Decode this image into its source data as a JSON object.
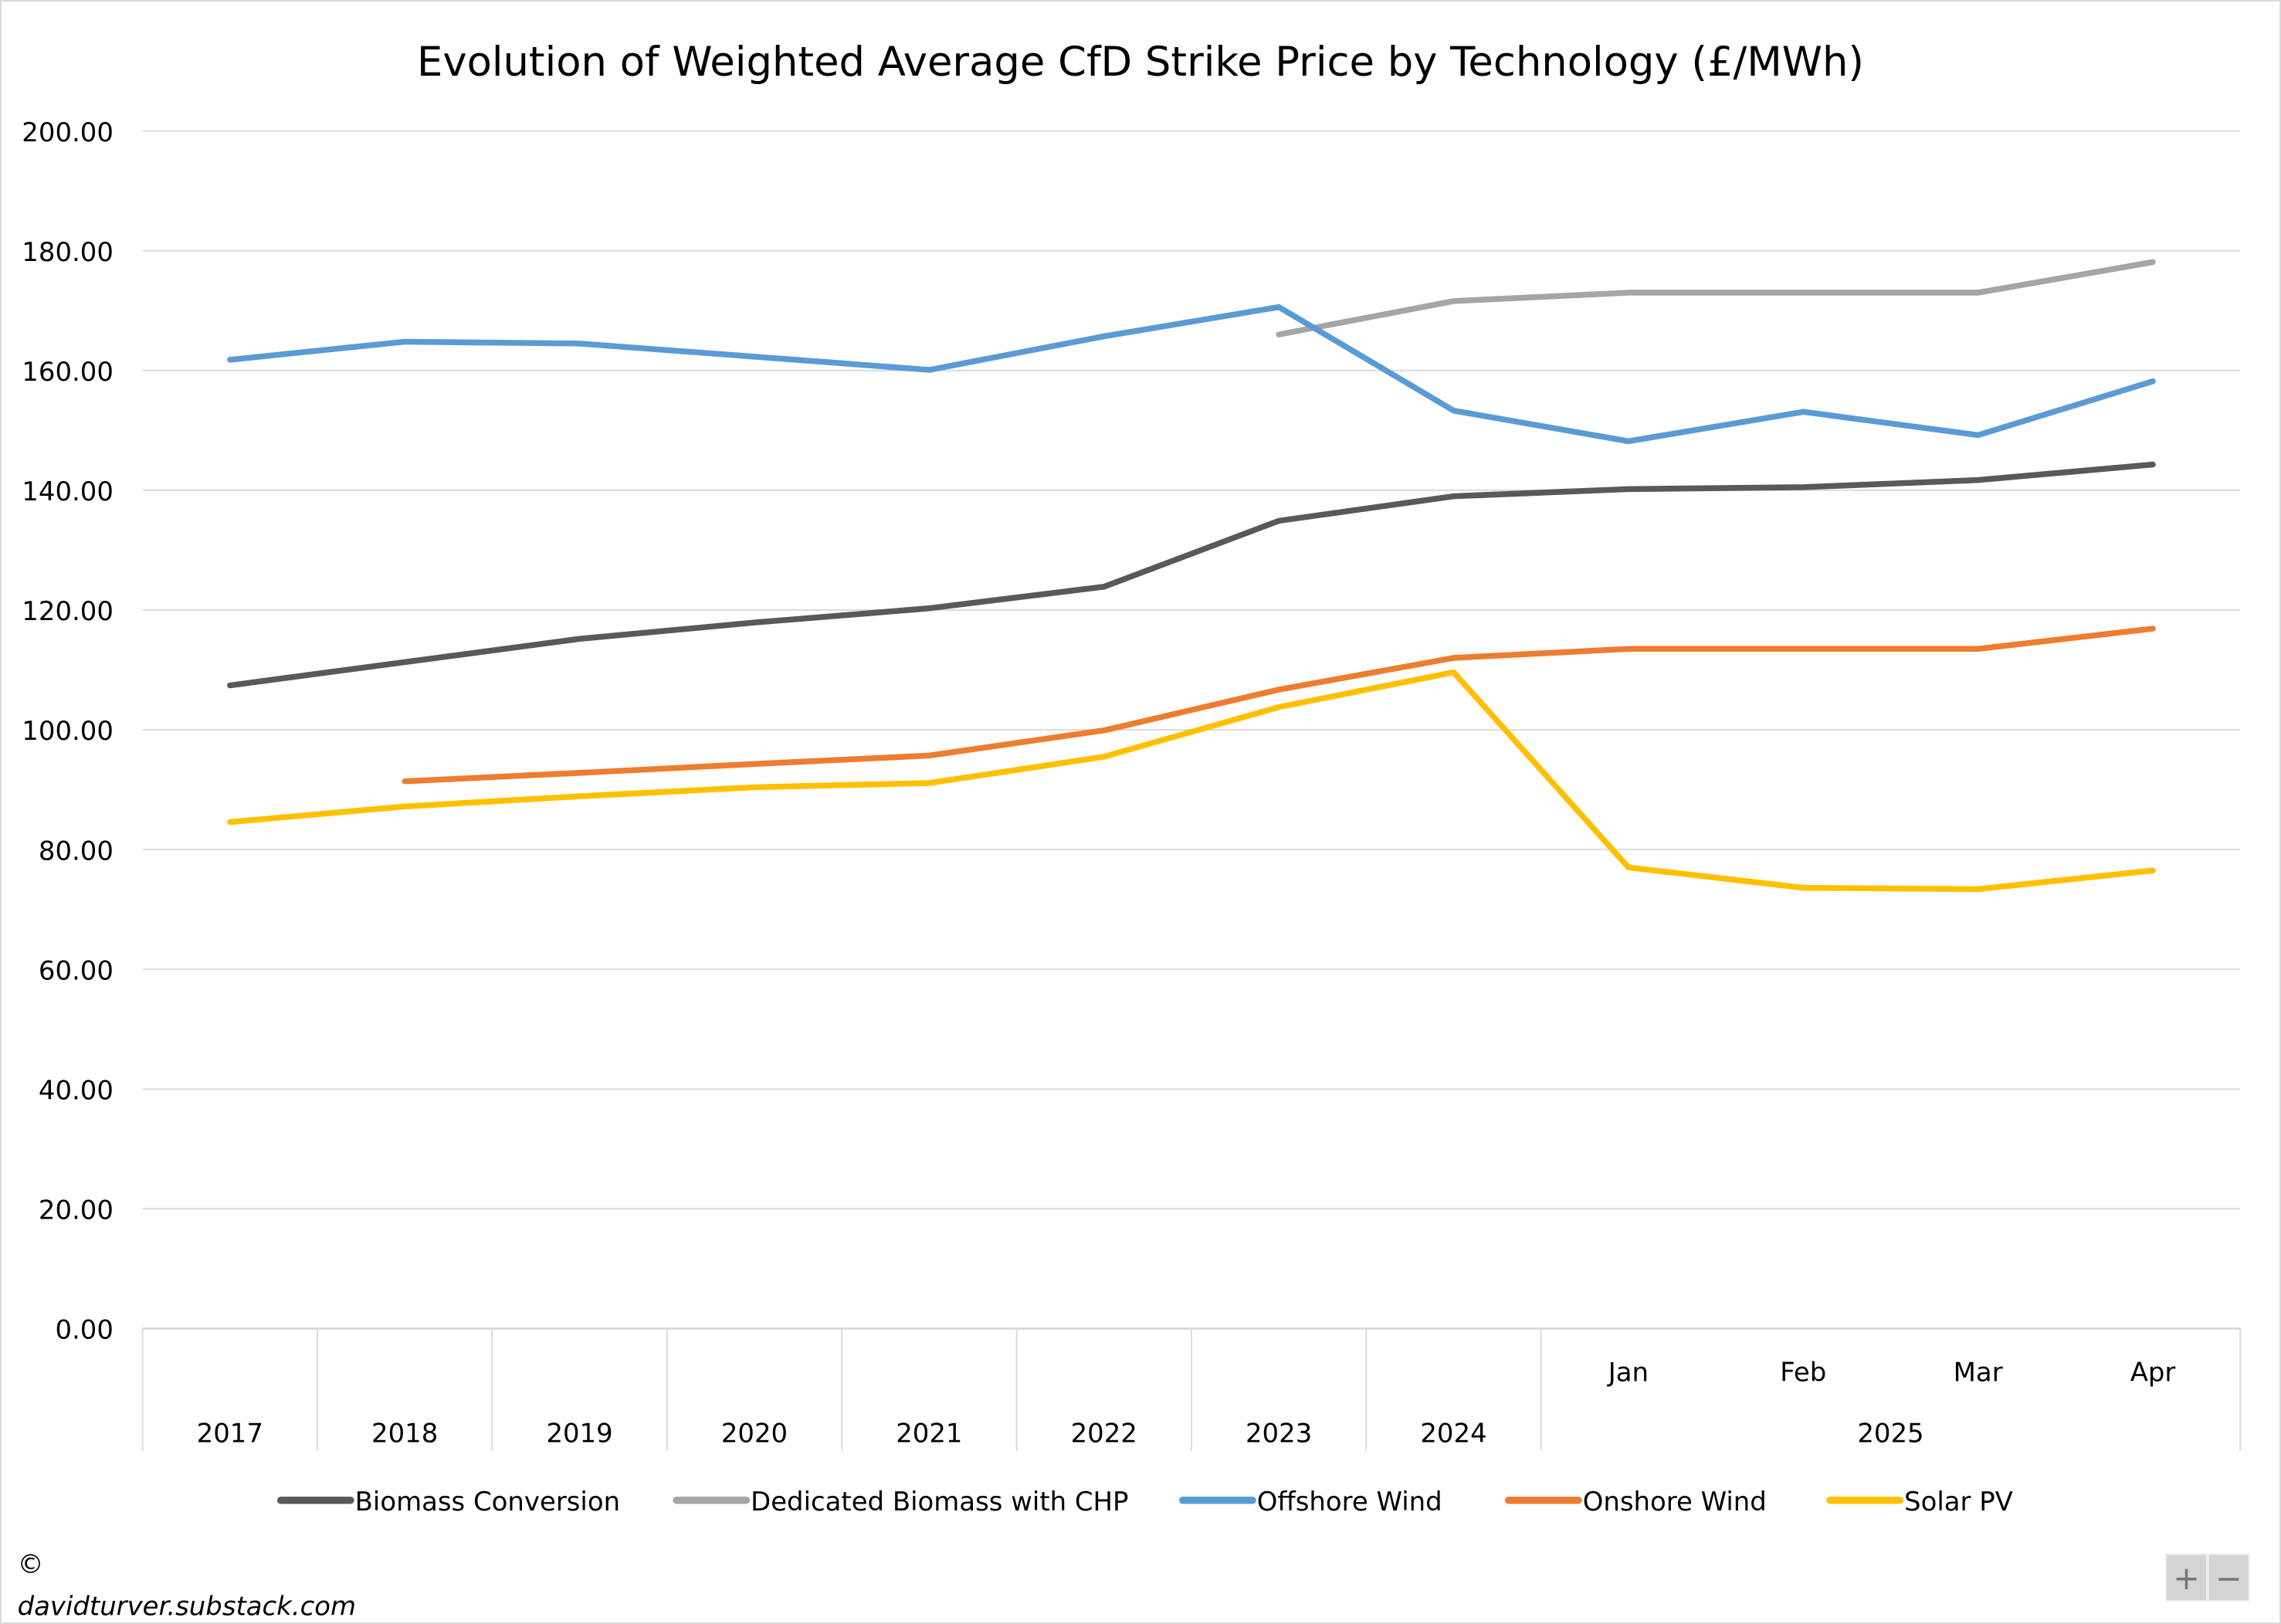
{
  "chart_data": {
    "type": "line",
    "title": "Evolution of Weighted Average CfD Strike Price by Technology (£/MWh)",
    "xlabel": "",
    "ylabel": "",
    "ylim": [
      0,
      200
    ],
    "yticks": [
      "0.00",
      "20.00",
      "40.00",
      "60.00",
      "80.00",
      "100.00",
      "120.00",
      "140.00",
      "160.00",
      "180.00",
      "200.00"
    ],
    "grid": true,
    "legend_position": "bottom",
    "categories": [
      "2017",
      "2018",
      "2019",
      "2020",
      "2021",
      "2022",
      "2023",
      "2024",
      "Jan",
      "Feb",
      "Mar",
      "Apr"
    ],
    "category_groups": [
      {
        "label": "2017",
        "span": 1
      },
      {
        "label": "2018",
        "span": 1
      },
      {
        "label": "2019",
        "span": 1
      },
      {
        "label": "2020",
        "span": 1
      },
      {
        "label": "2021",
        "span": 1
      },
      {
        "label": "2022",
        "span": 1
      },
      {
        "label": "2023",
        "span": 1
      },
      {
        "label": "2024",
        "span": 1
      },
      {
        "label": "2025",
        "span": 4,
        "sub": [
          "Jan",
          "Feb",
          "Mar",
          "Apr"
        ]
      }
    ],
    "series": [
      {
        "name": "Biomass Conversion",
        "color": "#595959",
        "values": [
          107.4,
          111.3,
          115.2,
          117.9,
          120.3,
          123.9,
          134.9,
          139.0,
          140.2,
          140.5,
          141.7,
          144.3
        ]
      },
      {
        "name": "Dedicated Biomass with CHP",
        "color": "#A5A5A5",
        "values": [
          null,
          null,
          null,
          null,
          null,
          null,
          166.0,
          171.6,
          173.0,
          173.0,
          173.0,
          178.1
        ]
      },
      {
        "name": "Offshore Wind",
        "color": "#5B9BD5",
        "values": [
          161.8,
          164.8,
          164.5,
          162.3,
          160.1,
          165.7,
          170.6,
          153.3,
          148.2,
          153.1,
          149.2,
          158.2
        ]
      },
      {
        "name": "Onshore Wind",
        "color": "#ED7D31",
        "values": [
          null,
          91.4,
          92.8,
          94.3,
          95.7,
          99.9,
          106.7,
          112.0,
          113.5,
          113.5,
          113.5,
          116.9
        ]
      },
      {
        "name": "Solar PV",
        "color": "#FFC000",
        "values": [
          84.6,
          87.2,
          88.9,
          90.4,
          91.1,
          95.5,
          103.8,
          109.6,
          77.0,
          73.6,
          73.4,
          76.5
        ]
      }
    ]
  },
  "footer": {
    "copyright": "©",
    "site": "davidturver.substack.com"
  },
  "zoom_controls": {
    "plus": "+",
    "minus": "−"
  }
}
